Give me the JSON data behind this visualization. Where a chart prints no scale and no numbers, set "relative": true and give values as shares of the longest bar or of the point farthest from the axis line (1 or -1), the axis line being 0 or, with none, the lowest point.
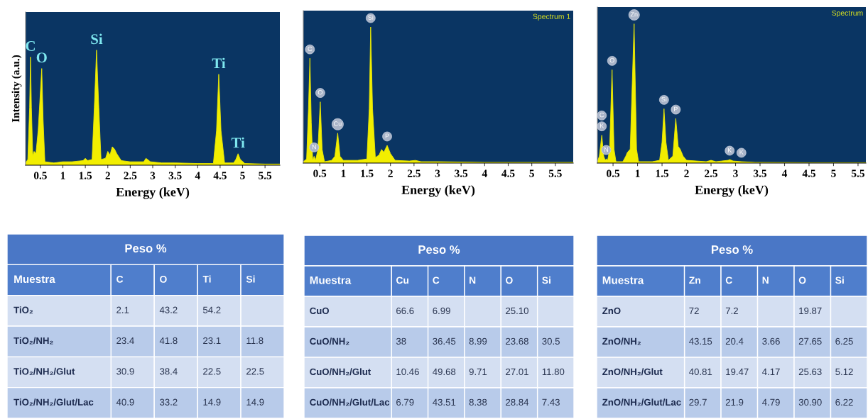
{
  "chart_data": [
    {
      "type": "area",
      "relative": true,
      "xlabel": "Energy (keV)",
      "ylabel": "Intensity (a.u.)",
      "xlim": [
        0.17,
        5.83
      ],
      "xticks": [
        0.5,
        1,
        1.5,
        2,
        2.5,
        3,
        3.5,
        4,
        4.5,
        5,
        5.5
      ],
      "series": [
        {
          "color": "#f2ee00",
          "x": [
            0.17,
            0.22,
            0.26,
            0.28,
            0.3,
            0.33,
            0.36,
            0.4,
            0.45,
            0.53,
            0.56,
            0.6,
            0.8,
            1.0,
            1.2,
            1.45,
            1.5,
            1.55,
            1.65,
            1.7,
            1.75,
            1.8,
            1.85,
            1.95,
            2.0,
            2.05,
            2.1,
            2.15,
            2.2,
            2.3,
            2.5,
            2.8,
            2.85,
            2.95,
            3.2,
            3.5,
            4.0,
            4.35,
            4.42,
            4.47,
            4.52,
            4.6,
            4.8,
            4.85,
            4.9,
            4.95,
            5.05,
            5.5,
            5.83
          ],
          "values": [
            0.02,
            0.05,
            0.5,
            0.94,
            0.5,
            0.08,
            0.12,
            0.1,
            0.3,
            0.84,
            0.4,
            0.03,
            0.02,
            0.03,
            0.03,
            0.04,
            0.06,
            0.04,
            0.05,
            0.5,
            1.0,
            0.5,
            0.05,
            0.06,
            0.12,
            0.09,
            0.16,
            0.14,
            0.1,
            0.04,
            0.03,
            0.03,
            0.06,
            0.03,
            0.02,
            0.02,
            0.015,
            0.015,
            0.3,
            0.79,
            0.3,
            0.02,
            0.02,
            0.05,
            0.1,
            0.05,
            0.015,
            0.01,
            0.01
          ]
        }
      ],
      "annotations": [
        {
          "text": "C",
          "x": 0.28,
          "y": 0.94
        },
        {
          "text": "O",
          "x": 0.53,
          "y": 0.84
        },
        {
          "text": "Si",
          "x": 1.75,
          "y": 1.0
        },
        {
          "text": "Ti",
          "x": 4.47,
          "y": 0.79
        },
        {
          "text": "Ti",
          "x": 4.9,
          "y": 0.1
        }
      ]
    },
    {
      "type": "area",
      "relative": true,
      "xlabel": "Energy (keV)",
      "xlim": [
        0.15,
        5.88
      ],
      "xticks": [
        0.5,
        1,
        1.5,
        2,
        2.5,
        3,
        3.5,
        4,
        4.5,
        5,
        5.5
      ],
      "series": [
        {
          "color": "#f2ee00",
          "x": [
            0.15,
            0.22,
            0.26,
            0.29,
            0.32,
            0.35,
            0.38,
            0.41,
            0.46,
            0.51,
            0.55,
            0.6,
            0.75,
            0.82,
            0.88,
            0.93,
            1.0,
            1.3,
            1.5,
            1.55,
            1.58,
            1.62,
            1.68,
            1.76,
            1.81,
            1.86,
            1.93,
            2.0,
            2.1,
            2.4,
            2.53,
            2.65,
            3.0,
            4.0,
            5.0,
            5.88
          ],
          "values": [
            0.01,
            0.03,
            0.4,
            0.77,
            0.3,
            0.02,
            0.05,
            0.02,
            0.1,
            0.45,
            0.1,
            0.01,
            0.02,
            0.05,
            0.22,
            0.05,
            0.02,
            0.02,
            0.03,
            0.4,
            1.0,
            0.4,
            0.04,
            0.06,
            0.1,
            0.08,
            0.13,
            0.07,
            0.02,
            0.015,
            0.02,
            0.01,
            0.01,
            0.005,
            0.005,
            0.005
          ]
        }
      ],
      "annotations": [
        "Spectrum 1",
        {
          "text": "C",
          "x": 0.29,
          "y": 0.77
        },
        {
          "text": "N",
          "x": 0.38,
          "y": 0.05
        },
        {
          "text": "O",
          "x": 0.51,
          "y": 0.45
        },
        {
          "text": "Cu",
          "x": 0.88,
          "y": 0.22
        },
        {
          "text": "Si",
          "x": 1.58,
          "y": 1.0
        },
        {
          "text": "P",
          "x": 1.93,
          "y": 0.13
        }
      ]
    },
    {
      "type": "area",
      "relative": true,
      "xlabel": "Energy (keV)",
      "xlim": [
        0.18,
        5.66
      ],
      "xticks": [
        0.5,
        1,
        1.5,
        2,
        2.5,
        3,
        3.5,
        4,
        4.5,
        5,
        5.5
      ],
      "series": [
        {
          "color": "#f2ee00",
          "x": [
            0.18,
            0.22,
            0.27,
            0.31,
            0.34,
            0.36,
            0.39,
            0.43,
            0.48,
            0.52,
            0.56,
            0.7,
            0.76,
            0.79,
            0.85,
            0.93,
            0.98,
            1.02,
            1.3,
            1.45,
            1.5,
            1.54,
            1.58,
            1.63,
            1.72,
            1.78,
            1.83,
            1.87,
            1.93,
            2.0,
            2.4,
            2.5,
            2.6,
            2.85,
            2.88,
            2.95,
            3.12,
            3.4,
            4.5,
            5.66
          ],
          "values": [
            0.01,
            0.05,
            0.2,
            0.05,
            0.02,
            0.03,
            0.02,
            0.1,
            0.67,
            0.1,
            0.01,
            0.01,
            0.05,
            0.075,
            0.1,
            1.0,
            0.1,
            0.01,
            0.01,
            0.02,
            0.15,
            0.39,
            0.15,
            0.02,
            0.05,
            0.32,
            0.12,
            0.1,
            0.05,
            0.02,
            0.01,
            0.02,
            0.01,
            0.02,
            0.025,
            0.015,
            0.01,
            0.005,
            0.003,
            0.003
          ]
        }
      ],
      "annotations": [
        "Spectrum",
        {
          "text": "K",
          "x": 0.27,
          "y": 0.2
        },
        {
          "text": "C",
          "x": 0.27,
          "y": 0.2
        },
        {
          "text": "N",
          "x": 0.36,
          "y": 0.03
        },
        {
          "text": "O",
          "x": 0.48,
          "y": 0.67
        },
        {
          "text": "Zn",
          "x": 0.93,
          "y": 1.0
        },
        {
          "text": "Si",
          "x": 1.54,
          "y": 0.39
        },
        {
          "text": "P",
          "x": 1.78,
          "y": 0.32
        },
        {
          "text": "K",
          "x": 2.88,
          "y": 0.025
        },
        {
          "text": "K",
          "x": 3.12,
          "y": 0.01
        }
      ]
    },
    {
      "type": "heatmap",
      "title": "Peso %",
      "ylabel": "Muestra",
      "categories": [
        "C",
        "O",
        "Ti",
        "Si"
      ],
      "y_categories": [
        "TiO₂",
        "TiO₂/NH₂",
        "TiO₂/NH₂/Glut",
        "TiO₂/NH₂/Glut/Lac"
      ],
      "cells": [
        [
          2.1,
          43.2,
          54.2,
          null
        ],
        [
          23.4,
          41.8,
          23.1,
          11.8
        ],
        [
          30.9,
          38.4,
          22.5,
          22.5
        ],
        [
          40.9,
          33.2,
          14.9,
          14.9
        ]
      ],
      "cell_labels": [
        [
          "2.1",
          "43.2",
          "54.2",
          null
        ],
        [
          "23.4",
          "41.8",
          "23.1",
          "11.8"
        ],
        [
          "30.9",
          "38.4",
          "22.5",
          "22.5"
        ],
        [
          "40.9",
          "33.2",
          "14.9",
          "14.9"
        ]
      ]
    },
    {
      "type": "heatmap",
      "title": "Peso %",
      "ylabel": "Muestra",
      "categories": [
        "Cu",
        "C",
        "N",
        "O",
        "Si"
      ],
      "y_categories": [
        "CuO",
        "CuO/NH₂",
        "CuO/NH₂/Glut",
        "CuO/NH₂/Glut/Lac"
      ],
      "cells": [
        [
          66.6,
          6.99,
          null,
          25.1,
          null
        ],
        [
          38,
          36.45,
          8.99,
          23.68,
          30.5
        ],
        [
          10.46,
          49.68,
          9.71,
          27.01,
          11.8
        ],
        [
          6.79,
          43.51,
          8.38,
          28.84,
          7.43
        ]
      ],
      "cell_labels": [
        [
          "66.6",
          "6.99",
          null,
          "25.10",
          null
        ],
        [
          "38",
          "36.45",
          "8.99",
          "23.68",
          "30.5"
        ],
        [
          "10.46",
          "49.68",
          "9.71",
          "27.01",
          "11.80"
        ],
        [
          "6.79",
          "43.51",
          "8.38",
          "28.84",
          "7.43"
        ]
      ]
    },
    {
      "type": "heatmap",
      "title": "Peso %",
      "ylabel": "Muestra",
      "categories": [
        "Zn",
        "C",
        "N",
        "O",
        "Si"
      ],
      "y_categories": [
        "ZnO",
        "ZnO/NH₂",
        "ZnO/NH₂/Glut",
        "ZnO/NH₂/Glut/Lac"
      ],
      "cells": [
        [
          72,
          7.2,
          null,
          19.87,
          null
        ],
        [
          43.15,
          20.4,
          3.66,
          27.65,
          6.25
        ],
        [
          40.81,
          19.47,
          4.17,
          25.63,
          5.12
        ],
        [
          29.7,
          21.9,
          4.79,
          30.9,
          6.22
        ]
      ],
      "cell_labels": [
        [
          "72",
          "7.2",
          null,
          "19.87",
          null
        ],
        [
          "43.15",
          "20.4",
          "3.66",
          "27.65",
          "6.25"
        ],
        [
          "40.81",
          "19.47",
          "4.17",
          "25.63",
          "5.12"
        ],
        [
          "29.7",
          "21.9",
          "4.79",
          "30.90",
          "6.22"
        ]
      ]
    }
  ]
}
